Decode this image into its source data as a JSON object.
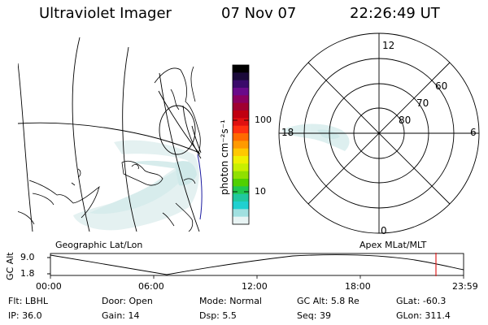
{
  "header": {
    "instrument": "Ultraviolet Imager",
    "date": "07 Nov 07",
    "time": "22:26:49 UT"
  },
  "colorbar": {
    "unit_label": "photon cm⁻²s⁻¹",
    "ticks": [
      "100",
      "10"
    ],
    "colors": [
      "#000000",
      "#1a0a3a",
      "#3a0a6a",
      "#6a0a8a",
      "#8a0060",
      "#a00030",
      "#c00010",
      "#e01010",
      "#ff3010",
      "#ff6a00",
      "#ff9a00",
      "#ffc800",
      "#f0f000",
      "#c8f000",
      "#90e000",
      "#50d000",
      "#20c850",
      "#20c8a0",
      "#20d0d0",
      "#a0e0e0",
      "#e8f4f4"
    ]
  },
  "map_panel": {
    "caption": "Geographic Lat/Lon"
  },
  "polar_panel": {
    "caption": "Apex MLat/MLT",
    "mlt_labels": {
      "top": "12",
      "bottom": "0",
      "left": "18",
      "right": "6"
    },
    "lat_labels": [
      "60",
      "70",
      "80"
    ]
  },
  "orbit_plot": {
    "ylabel": "GC Alt",
    "y_ticks": [
      "9.0",
      "1.8"
    ],
    "x_ticks": [
      "00:00",
      "06:00",
      "12:00",
      "18:00",
      "23:59"
    ]
  },
  "info": {
    "filter": {
      "label": "Flt:",
      "value": "LBHL"
    },
    "door": {
      "label": "Door:",
      "value": "Open"
    },
    "mode": {
      "label": "Mode:",
      "value": "Normal"
    },
    "gc_alt": {
      "label": "GC Alt:",
      "value": "5.8 Re"
    },
    "glat": {
      "label": "GLat:",
      "value": "-60.3"
    },
    "ip": {
      "label": "IP:",
      "value": "36.0"
    },
    "gain": {
      "label": "Gain:",
      "value": "14"
    },
    "dsp": {
      "label": "Dsp:",
      "value": "5.5"
    },
    "seq": {
      "label": "Seq:",
      "value": "39"
    },
    "glon": {
      "label": "GLon:",
      "value": "311.4"
    }
  }
}
